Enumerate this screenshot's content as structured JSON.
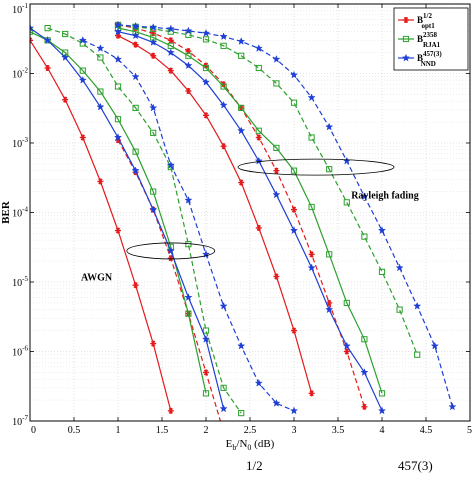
{
  "chart_data": {
    "type": "line",
    "xlabel": "E_b/N_0 (dB)",
    "ylabel": "BER",
    "xlim": [
      0,
      5
    ],
    "ylim": [
      1e-07,
      0.1
    ],
    "yscale": "log",
    "grid": true,
    "legend_position": "top-right",
    "xticks": [
      0,
      0.5,
      1,
      1.5,
      2,
      2.5,
      3,
      3.5,
      4,
      4.5,
      5
    ],
    "xtick_labels": [
      "0",
      "0.5",
      "1",
      "1.5",
      "2",
      "2.5",
      "3",
      "3.5",
      "4",
      "4.5",
      "5"
    ],
    "yticks": [
      1e-07,
      1e-06,
      1e-05,
      0.0001,
      0.001,
      0.01,
      0.1
    ],
    "annotations": [
      "AWGN",
      "Rayleigh fading"
    ],
    "legend": [
      {
        "base": "B",
        "sup": "1/2",
        "sub": "opt1",
        "color": "#e41a1c",
        "marker": "asterisk"
      },
      {
        "base": "B",
        "sup": "2358",
        "sub": "RJA1",
        "color": "#2ca02c",
        "marker": "square"
      },
      {
        "base": "B",
        "sup": "457(3)",
        "sub": "NND",
        "color": "#1f3fd6",
        "marker": "star"
      }
    ],
    "series": [
      {
        "group": 0,
        "style": "solid",
        "x": [
          0,
          0.2,
          0.4,
          0.6,
          0.8,
          1.0,
          1.2,
          1.4,
          1.6
        ],
        "y": [
          0.03,
          0.012,
          0.0042,
          0.0012,
          0.00028,
          5.5e-05,
          9e-06,
          1.3e-06,
          1.4e-07
        ]
      },
      {
        "group": 0,
        "style": "dashed",
        "x": [
          1.0,
          1.2,
          1.4,
          1.6,
          1.8,
          2.0,
          2.2
        ],
        "y": [
          0.0011,
          0.00038,
          0.00011,
          2.2e-05,
          3.5e-06,
          5e-07,
          7e-08
        ]
      },
      {
        "group": 0,
        "style": "solid",
        "x": [
          1.0,
          1.2,
          1.4,
          1.6,
          1.8,
          2.0,
          2.2,
          2.4,
          2.6,
          2.8,
          3.0,
          3.2
        ],
        "y": [
          0.035,
          0.026,
          0.018,
          0.011,
          0.0056,
          0.0025,
          0.0009,
          0.00027,
          6e-05,
          1.2e-05,
          2e-06,
          2.5e-07
        ]
      },
      {
        "group": 0,
        "style": "dashed",
        "x": [
          1.0,
          1.2,
          1.4,
          1.6,
          1.8,
          2.0,
          2.2,
          2.4,
          2.6,
          2.8,
          3.0,
          3.2,
          3.4,
          3.6,
          3.8
        ],
        "y": [
          0.05,
          0.045,
          0.038,
          0.03,
          0.021,
          0.013,
          0.007,
          0.0032,
          0.0012,
          0.0004,
          0.00011,
          2.5e-05,
          5e-06,
          1e-06,
          1.6e-07
        ]
      },
      {
        "group": 1,
        "style": "solid",
        "x": [
          0,
          0.2,
          0.4,
          0.6,
          0.8,
          1.0,
          1.2,
          1.4,
          1.6,
          1.8,
          2.0
        ],
        "y": [
          0.04,
          0.03,
          0.02,
          0.011,
          0.0055,
          0.0022,
          0.00075,
          0.0002,
          3.2e-05,
          3.5e-06,
          2.5e-07
        ]
      },
      {
        "group": 1,
        "style": "dashed",
        "x": [
          0.2,
          0.4,
          0.6,
          0.8,
          1.0,
          1.2,
          1.4,
          1.6,
          1.8,
          2.0,
          2.2,
          2.4
        ],
        "y": [
          0.045,
          0.037,
          0.027,
          0.017,
          0.0065,
          0.0032,
          0.0014,
          0.00045,
          3.5e-05,
          2e-06,
          3e-07,
          1.3e-07
        ]
      },
      {
        "group": 1,
        "style": "solid",
        "x": [
          1.0,
          1.2,
          1.4,
          1.6,
          1.8,
          2.0,
          2.2,
          2.4,
          2.6,
          2.8,
          3.0,
          3.2,
          3.4,
          3.6,
          3.8,
          4.0
        ],
        "y": [
          0.045,
          0.04,
          0.033,
          0.025,
          0.018,
          0.012,
          0.0065,
          0.0032,
          0.0015,
          0.00085,
          0.0004,
          0.00012,
          2.5e-05,
          5e-06,
          1.5e-06,
          2.5e-07
        ]
      },
      {
        "group": 1,
        "style": "dashed",
        "x": [
          1.0,
          1.2,
          1.4,
          1.6,
          1.8,
          2.0,
          2.2,
          2.4,
          2.6,
          2.8,
          3.0,
          3.2,
          3.4,
          3.6,
          3.8,
          4.0,
          4.2,
          4.4
        ],
        "y": [
          0.05,
          0.047,
          0.044,
          0.04,
          0.036,
          0.031,
          0.025,
          0.018,
          0.012,
          0.0072,
          0.0038,
          0.0012,
          0.00042,
          0.00014,
          4.5e-05,
          1.4e-05,
          4e-06,
          9e-07
        ]
      },
      {
        "group": 2,
        "style": "solid",
        "x": [
          0,
          0.2,
          0.4,
          0.6,
          0.8,
          1.0,
          1.2,
          1.4,
          1.6,
          1.8,
          2.0,
          2.2
        ],
        "y": [
          0.045,
          0.03,
          0.017,
          0.008,
          0.0033,
          0.0012,
          0.0004,
          0.00011,
          2.8e-05,
          6e-06,
          1.5e-06,
          1.5e-07
        ]
      },
      {
        "group": 2,
        "style": "dashed",
        "x": [
          0.6,
          0.8,
          1.0,
          1.2,
          1.4,
          1.6,
          1.8,
          2.0,
          2.2,
          2.4,
          2.6,
          2.8,
          3.0
        ],
        "y": [
          0.03,
          0.023,
          0.016,
          0.009,
          0.0032,
          0.00048,
          0.00015,
          2.5e-05,
          4.5e-06,
          1.2e-06,
          3.5e-07,
          1.8e-07,
          1.4e-07
        ]
      },
      {
        "group": 2,
        "style": "solid",
        "x": [
          1.0,
          1.2,
          1.4,
          1.6,
          1.8,
          2.0,
          2.2,
          2.4,
          2.6,
          2.8,
          3.0,
          3.2,
          3.4,
          3.6,
          3.8,
          4.0
        ],
        "y": [
          0.04,
          0.035,
          0.028,
          0.02,
          0.013,
          0.0075,
          0.0035,
          0.0015,
          0.00055,
          0.00018,
          5.5e-05,
          1.6e-05,
          4e-06,
          1.2e-06,
          5e-07,
          1.4e-07
        ]
      },
      {
        "group": 2,
        "style": "dashed",
        "x": [
          1.0,
          1.2,
          1.4,
          1.6,
          1.8,
          2.0,
          2.2,
          2.4,
          2.6,
          2.8,
          3.0,
          3.2,
          3.4,
          3.6,
          3.8,
          4.0,
          4.2,
          4.4,
          4.6,
          4.8
        ],
        "y": [
          0.05,
          0.048,
          0.046,
          0.044,
          0.041,
          0.038,
          0.034,
          0.029,
          0.023,
          0.016,
          0.0095,
          0.0045,
          0.0017,
          0.00055,
          0.00017,
          5.5e-05,
          1.6e-05,
          4.5e-06,
          1.2e-06,
          1.6e-07
        ]
      }
    ]
  },
  "caption": {
    "sup1": "1/2",
    "sup2": "457(3)"
  }
}
